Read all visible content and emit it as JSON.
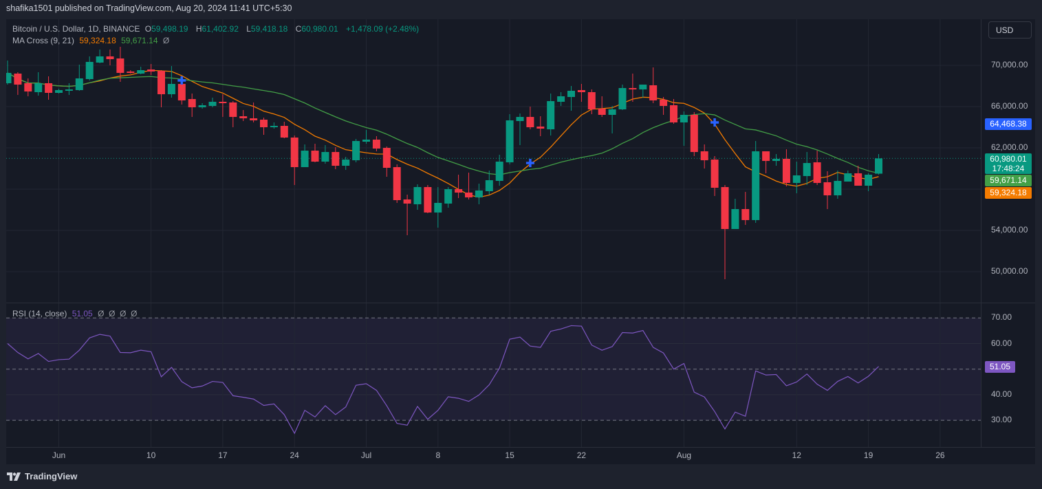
{
  "header": {
    "published": "shafika1501 published on TradingView.com, Aug 20, 2024 11:41 UTC+5:30"
  },
  "legend": {
    "symbol": "Bitcoin / U.S. Dollar, 1D, BINANCE",
    "o_label": "O",
    "o": "59,498.19",
    "h_label": "H",
    "h": "61,402.92",
    "l_label": "L",
    "l": "59,418.18",
    "c_label": "C",
    "c": "60,980.01",
    "change": "+1,478.09 (+2.48%)",
    "ma_name": "MA Cross (9, 21)",
    "ma9": "59,324.18",
    "ma21": "59,671.14",
    "ma_null": "Ø",
    "rsi_name": "RSI (14, close)",
    "rsi_value": "51.05",
    "rsi_nulls": "Ø  Ø  Ø  Ø"
  },
  "currency_button": "USD",
  "price_tags": {
    "cross": "64,468.38",
    "last": "60,980.01",
    "countdown": "17:48:24",
    "ma21": "59,671.14",
    "ma9": "59,324.18",
    "rsi": "51.05"
  },
  "footer": {
    "brand": "TradingView"
  },
  "colors": {
    "up": "#089981",
    "down": "#f23645",
    "ma9": "#f57c00",
    "ma21": "#43a047",
    "cross": "#2962ff",
    "rsi": "#7e57c2"
  },
  "chart_data": {
    "type": "candlestick",
    "title": "Bitcoin / U.S. Dollar, 1D, BINANCE",
    "start_date": "2024-05-27",
    "ohlc_order": [
      "open",
      "high",
      "low",
      "close"
    ],
    "ohlc": [
      [
        68267,
        70467,
        68133,
        69267
      ],
      [
        69200,
        69333,
        67133,
        68133
      ],
      [
        68267,
        68733,
        67000,
        67467
      ],
      [
        67400,
        69333,
        67067,
        68267
      ],
      [
        68267,
        68933,
        66667,
        67333
      ],
      [
        67333,
        67733,
        67267,
        67600
      ],
      [
        67533,
        68267,
        67133,
        67667
      ],
      [
        67600,
        70067,
        67533,
        68733
      ],
      [
        68667,
        70867,
        68533,
        70333
      ],
      [
        70267,
        71533,
        70200,
        70867
      ],
      [
        70867,
        71533,
        70000,
        70600
      ],
      [
        70667,
        71800,
        68400,
        69267
      ],
      [
        69400,
        69533,
        69200,
        69267
      ],
      [
        69200,
        69867,
        69133,
        69533
      ],
      [
        69600,
        70133,
        69067,
        69400
      ],
      [
        69467,
        69533,
        65933,
        67200
      ],
      [
        67200,
        69933,
        66867,
        68200
      ],
      [
        68200,
        68467,
        66200,
        66600
      ],
      [
        66733,
        67267,
        65000,
        65933
      ],
      [
        65933,
        66333,
        65800,
        66133
      ],
      [
        66067,
        66867,
        65933,
        66467
      ],
      [
        66467,
        67200,
        65000,
        66333
      ],
      [
        66400,
        66533,
        64000,
        65000
      ],
      [
        65067,
        65667,
        64600,
        64867
      ],
      [
        64867,
        66400,
        64467,
        64667
      ],
      [
        64733,
        64933,
        63267,
        64000
      ],
      [
        64000,
        64467,
        63867,
        64133
      ],
      [
        64133,
        64533,
        62933,
        63000
      ],
      [
        63000,
        63200,
        58400,
        60133
      ],
      [
        60133,
        62333,
        60133,
        61733
      ],
      [
        61733,
        62400,
        60600,
        60667
      ],
      [
        60667,
        62267,
        60467,
        61600
      ],
      [
        61600,
        62067,
        59933,
        60267
      ],
      [
        60267,
        61133,
        59867,
        60867
      ],
      [
        60800,
        62867,
        60600,
        62667
      ],
      [
        62600,
        63733,
        62400,
        62800
      ],
      [
        62800,
        63133,
        61667,
        61933
      ],
      [
        62000,
        62133,
        59200,
        60067
      ],
      [
        60133,
        60400,
        56667,
        56933
      ],
      [
        57000,
        57467,
        53533,
        56600
      ],
      [
        56533,
        58467,
        56000,
        58200
      ],
      [
        58200,
        58400,
        55667,
        55733
      ],
      [
        55733,
        58200,
        54267,
        56667
      ],
      [
        56600,
        58200,
        56200,
        58000
      ],
      [
        58000,
        59400,
        57133,
        57667
      ],
      [
        57667,
        59600,
        57000,
        57200
      ],
      [
        57200,
        58533,
        56533,
        57867
      ],
      [
        57800,
        59800,
        57467,
        58867
      ],
      [
        58800,
        61333,
        58333,
        60667
      ],
      [
        60600,
        65267,
        60400,
        64667
      ],
      [
        64600,
        65333,
        62267,
        65000
      ],
      [
        65000,
        66000,
        63800,
        64000
      ],
      [
        64067,
        65067,
        63133,
        63867
      ],
      [
        63800,
        67267,
        63200,
        66533
      ],
      [
        66467,
        67400,
        66067,
        67000
      ],
      [
        66933,
        68000,
        65600,
        67533
      ],
      [
        67600,
        68200,
        66467,
        67400
      ],
      [
        67400,
        67667,
        65267,
        65733
      ],
      [
        65800,
        67000,
        65000,
        65200
      ],
      [
        65200,
        66067,
        63400,
        65733
      ],
      [
        65733,
        68133,
        65667,
        67800
      ],
      [
        67800,
        69200,
        66467,
        67667
      ],
      [
        67667,
        68133,
        66867,
        68133
      ],
      [
        68067,
        69800,
        66333,
        66600
      ],
      [
        66667,
        66933,
        65200,
        66067
      ],
      [
        66133,
        66733,
        64333,
        64467
      ],
      [
        64467,
        65533,
        62200,
        65200
      ],
      [
        65200,
        65467,
        61200,
        61600
      ],
      [
        61667,
        62333,
        60000,
        60800
      ],
      [
        60867,
        61200,
        57333,
        58133
      ],
      [
        58200,
        58400,
        49267,
        54133
      ],
      [
        54133,
        57067,
        54133,
        56067
      ],
      [
        56067,
        57733,
        54533,
        55000
      ],
      [
        55000,
        62667,
        54733,
        61667
      ],
      [
        61667,
        61667,
        59533,
        60733
      ],
      [
        60733,
        61400,
        60267,
        60933
      ],
      [
        60933,
        61867,
        58267,
        58600
      ],
      [
        58600,
        60667,
        57600,
        59333
      ],
      [
        59267,
        61600,
        58400,
        60533
      ],
      [
        60600,
        61733,
        58400,
        58600
      ],
      [
        58667,
        59733,
        56067,
        57400
      ],
      [
        57400,
        59800,
        57067,
        58800
      ],
      [
        58733,
        59800,
        58733,
        59533
      ],
      [
        59533,
        60267,
        58333,
        58333
      ],
      [
        58333,
        59533,
        57800,
        59400
      ],
      [
        59498.19,
        61402.92,
        59418.18,
        60980.01
      ]
    ],
    "ma_periods": [
      9,
      21
    ],
    "ma_cross_markers": [
      {
        "date": "2024-06-13",
        "price": 68533
      },
      {
        "date": "2024-07-17",
        "price": 60533
      },
      {
        "date": "2024-08-04",
        "price": 64468.38
      }
    ],
    "last_price": 60980.01,
    "rsi": [
      60.0,
      56.5,
      54.0,
      56.1,
      53.0,
      53.7,
      53.9,
      57.4,
      62.2,
      63.6,
      62.9,
      56.5,
      56.4,
      57.4,
      56.8,
      47.0,
      50.7,
      45.1,
      42.7,
      43.4,
      45.2,
      44.8,
      39.6,
      39.0,
      38.3,
      35.8,
      36.4,
      32.2,
      24.9,
      33.9,
      31.3,
      35.7,
      32.2,
      35.2,
      43.7,
      44.3,
      41.7,
      35.7,
      28.8,
      28.1,
      35.4,
      30.4,
      33.9,
      39.2,
      38.6,
      37.4,
      39.9,
      43.9,
      50.4,
      61.7,
      62.5,
      59.0,
      58.5,
      64.8,
      65.7,
      67.0,
      66.8,
      59.4,
      57.4,
      58.8,
      64.3,
      64.1,
      65.1,
      58.5,
      56.3,
      50.0,
      52.2,
      41.0,
      39.1,
      33.4,
      26.6,
      33.2,
      31.6,
      49.3,
      47.7,
      47.9,
      43.5,
      45.0,
      48.1,
      44.1,
      41.7,
      45.2,
      47.1,
      44.6,
      47.2,
      51.05
    ],
    "price_axis": {
      "ticks": [
        "70,000.00",
        "66,000.00",
        "62,000.00",
        "54,000.00",
        "50,000.00"
      ],
      "values": [
        70000,
        66000,
        62000,
        54000,
        50000
      ],
      "range": [
        48500,
        73000
      ]
    },
    "rsi_axis": {
      "ticks": [
        "70.00",
        "60.00",
        "40.00",
        "30.00"
      ],
      "values": [
        70,
        60,
        40,
        30
      ],
      "bands": [
        70,
        50,
        30
      ]
    },
    "x_ticks": [
      {
        "label": "Jun",
        "date": "2024-06-01"
      },
      {
        "label": "10",
        "date": "2024-06-10"
      },
      {
        "label": "17",
        "date": "2024-06-17"
      },
      {
        "label": "24",
        "date": "2024-06-24"
      },
      {
        "label": "Jul",
        "date": "2024-07-01"
      },
      {
        "label": "8",
        "date": "2024-07-08"
      },
      {
        "label": "15",
        "date": "2024-07-15"
      },
      {
        "label": "22",
        "date": "2024-07-22"
      },
      {
        "label": "Aug",
        "date": "2024-08-01"
      },
      {
        "label": "12",
        "date": "2024-08-12"
      },
      {
        "label": "19",
        "date": "2024-08-19"
      },
      {
        "label": "26",
        "date": "2024-08-26"
      }
    ]
  }
}
